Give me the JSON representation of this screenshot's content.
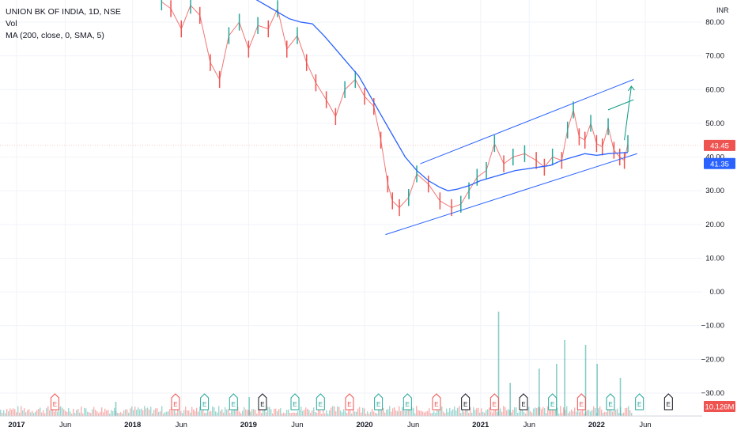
{
  "chart_data": {
    "type": "line",
    "title": "UNION BK OF INDIA, 1D, NSE",
    "legend": [
      "Vol",
      "MA (200, close, 0, SMA, 5)"
    ],
    "currency": "INR",
    "y_axis": {
      "ticks": [
        "80.00",
        "70.00",
        "60.00",
        "50.00",
        "40.00",
        "30.00",
        "20.00",
        "10.00",
        "0.00",
        "−10.00",
        "−20.00",
        "−30.00"
      ],
      "tick_values": [
        80,
        70,
        60,
        50,
        40,
        30,
        20,
        10,
        0,
        -10,
        -20,
        -30
      ],
      "range": [
        -33,
        86
      ]
    },
    "x_axis": {
      "ticks": [
        {
          "label": "2017",
          "t": 2017.0
        },
        {
          "label": "Jun",
          "t": 2017.42
        },
        {
          "label": "2018",
          "t": 2018.0
        },
        {
          "label": "Jun",
          "t": 2018.42
        },
        {
          "label": "2019",
          "t": 2019.0
        },
        {
          "label": "Jun",
          "t": 2019.42
        },
        {
          "label": "2020",
          "t": 2020.0
        },
        {
          "label": "Jun",
          "t": 2020.42
        },
        {
          "label": "2021",
          "t": 2021.0
        },
        {
          "label": "Jun",
          "t": 2021.42
        },
        {
          "label": "2022",
          "t": 2022.0
        },
        {
          "label": "Jun",
          "t": 2022.42
        }
      ],
      "range": [
        2017.0,
        2022.7
      ]
    },
    "price_labels": {
      "last_price": "43.45",
      "ma_value": "41.35",
      "volume": "10.126M",
      "last_price_value": 43.45,
      "ma_value_num": 41.35
    },
    "price_series": {
      "name": "UNION BK OF INDIA",
      "x": [
        2018.25,
        2018.33,
        2018.42,
        2018.5,
        2018.58,
        2018.67,
        2018.75,
        2018.83,
        2018.92,
        2019.0,
        2019.08,
        2019.17,
        2019.25,
        2019.33,
        2019.42,
        2019.5,
        2019.58,
        2019.67,
        2019.75,
        2019.83,
        2019.92,
        2020.0,
        2020.08,
        2020.14,
        2020.2,
        2020.24,
        2020.3,
        2020.38,
        2020.45,
        2020.55,
        2020.65,
        2020.75,
        2020.83,
        2020.9,
        2020.97,
        2021.05,
        2021.12,
        2021.2,
        2021.28,
        2021.38,
        2021.48,
        2021.55,
        2021.62,
        2021.7,
        2021.75,
        2021.8,
        2021.85,
        2021.9,
        2021.95,
        2022.0,
        2022.05,
        2022.1,
        2022.15,
        2022.2,
        2022.24,
        2022.27
      ],
      "y": [
        86,
        84,
        78,
        85,
        82,
        68,
        63,
        76,
        80,
        72,
        79,
        78,
        84,
        72,
        76,
        68,
        62,
        57,
        52,
        60,
        63,
        58,
        55,
        45,
        32,
        27,
        25,
        28,
        35,
        32,
        27,
        25,
        26,
        30,
        34,
        36,
        44,
        38,
        40,
        41,
        39,
        37,
        40,
        39,
        48,
        54,
        46,
        45,
        50,
        44,
        43,
        49,
        42,
        40,
        39,
        44
      ]
    },
    "ma_series": {
      "name": "MA (200, close, 0, SMA, 5)",
      "x": [
        2019.05,
        2019.15,
        2019.25,
        2019.35,
        2019.45,
        2019.55,
        2019.65,
        2019.75,
        2019.85,
        2019.95,
        2020.05,
        2020.15,
        2020.25,
        2020.35,
        2020.45,
        2020.55,
        2020.65,
        2020.72,
        2020.8,
        2020.9,
        2021.0,
        2021.1,
        2021.2,
        2021.3,
        2021.4,
        2021.5,
        2021.6,
        2021.7,
        2021.8,
        2021.9,
        2022.0,
        2022.1,
        2022.2,
        2022.27
      ],
      "y": [
        87,
        85,
        83,
        81,
        80,
        79.5,
        76,
        72,
        68,
        64,
        58,
        52,
        46,
        40,
        36,
        33,
        31,
        30,
        30.5,
        31.5,
        33,
        34,
        35,
        36,
        36.5,
        37,
        37.5,
        39,
        40,
        41,
        40.5,
        41,
        41.2,
        41.35
      ]
    },
    "trendlines": [
      {
        "name": "channel-lower",
        "x": [
          2020.18,
          2022.35
        ],
        "y": [
          17,
          41
        ]
      },
      {
        "name": "channel-upper",
        "x": [
          2020.48,
          2022.32
        ],
        "y": [
          38,
          63
        ]
      },
      {
        "name": "projection-upper",
        "x": [
          2022.1,
          2022.32
        ],
        "y": [
          54,
          57
        ]
      },
      {
        "name": "projection-arrow",
        "x": [
          2022.24,
          2022.3
        ],
        "y": [
          45,
          61
        ]
      }
    ],
    "earnings_markers": [
      {
        "label": "E",
        "t": 2017.33,
        "type": "miss"
      },
      {
        "label": "E",
        "t": 2018.37,
        "type": "miss"
      },
      {
        "label": "E",
        "t": 2018.62,
        "type": "beat"
      },
      {
        "label": "E",
        "t": 2018.87,
        "type": "beat"
      },
      {
        "label": "E",
        "t": 2019.12,
        "type": "neutral"
      },
      {
        "label": "E",
        "t": 2019.4,
        "type": "beat"
      },
      {
        "label": "E",
        "t": 2019.62,
        "type": "beat"
      },
      {
        "label": "E",
        "t": 2019.87,
        "type": "miss"
      },
      {
        "label": "E",
        "t": 2020.12,
        "type": "beat"
      },
      {
        "label": "E",
        "t": 2020.37,
        "type": "beat"
      },
      {
        "label": "E",
        "t": 2020.62,
        "type": "miss"
      },
      {
        "label": "E",
        "t": 2020.87,
        "type": "neutral"
      },
      {
        "label": "E",
        "t": 2021.12,
        "type": "miss"
      },
      {
        "label": "E",
        "t": 2021.37,
        "type": "neutral"
      },
      {
        "label": "E",
        "t": 2021.62,
        "type": "beat"
      },
      {
        "label": "E",
        "t": 2021.87,
        "type": "miss"
      },
      {
        "label": "E",
        "t": 2022.12,
        "type": "beat"
      },
      {
        "label": "E",
        "t": 2022.37,
        "type": "beat"
      },
      {
        "label": "E",
        "t": 2022.62,
        "type": "neutral"
      },
      {
        "label": "E",
        "t": 2022.87,
        "type": "neutral"
      },
      {
        "label": "E",
        "t": 2023.1,
        "type": "upcoming"
      }
    ],
    "volume_spikes": [
      {
        "t": 2021.15,
        "v": 22
      },
      {
        "t": 2021.25,
        "v": 7
      },
      {
        "t": 2021.5,
        "v": 10
      },
      {
        "t": 2021.65,
        "v": 11
      },
      {
        "t": 2021.72,
        "v": 16
      },
      {
        "t": 2021.9,
        "v": 15
      },
      {
        "t": 2022.0,
        "v": 11
      },
      {
        "t": 2022.2,
        "v": 8
      },
      {
        "t": 2019.0,
        "v": 4
      },
      {
        "t": 2017.85,
        "v": 3
      }
    ],
    "colors": {
      "up": "#26a69a",
      "down": "#ef5350",
      "ma": "#2962ff",
      "trendline": "#2962ff",
      "projection": "#089981",
      "earnings_upcoming": "#e040fb",
      "grid": "#f0f3fa"
    }
  }
}
